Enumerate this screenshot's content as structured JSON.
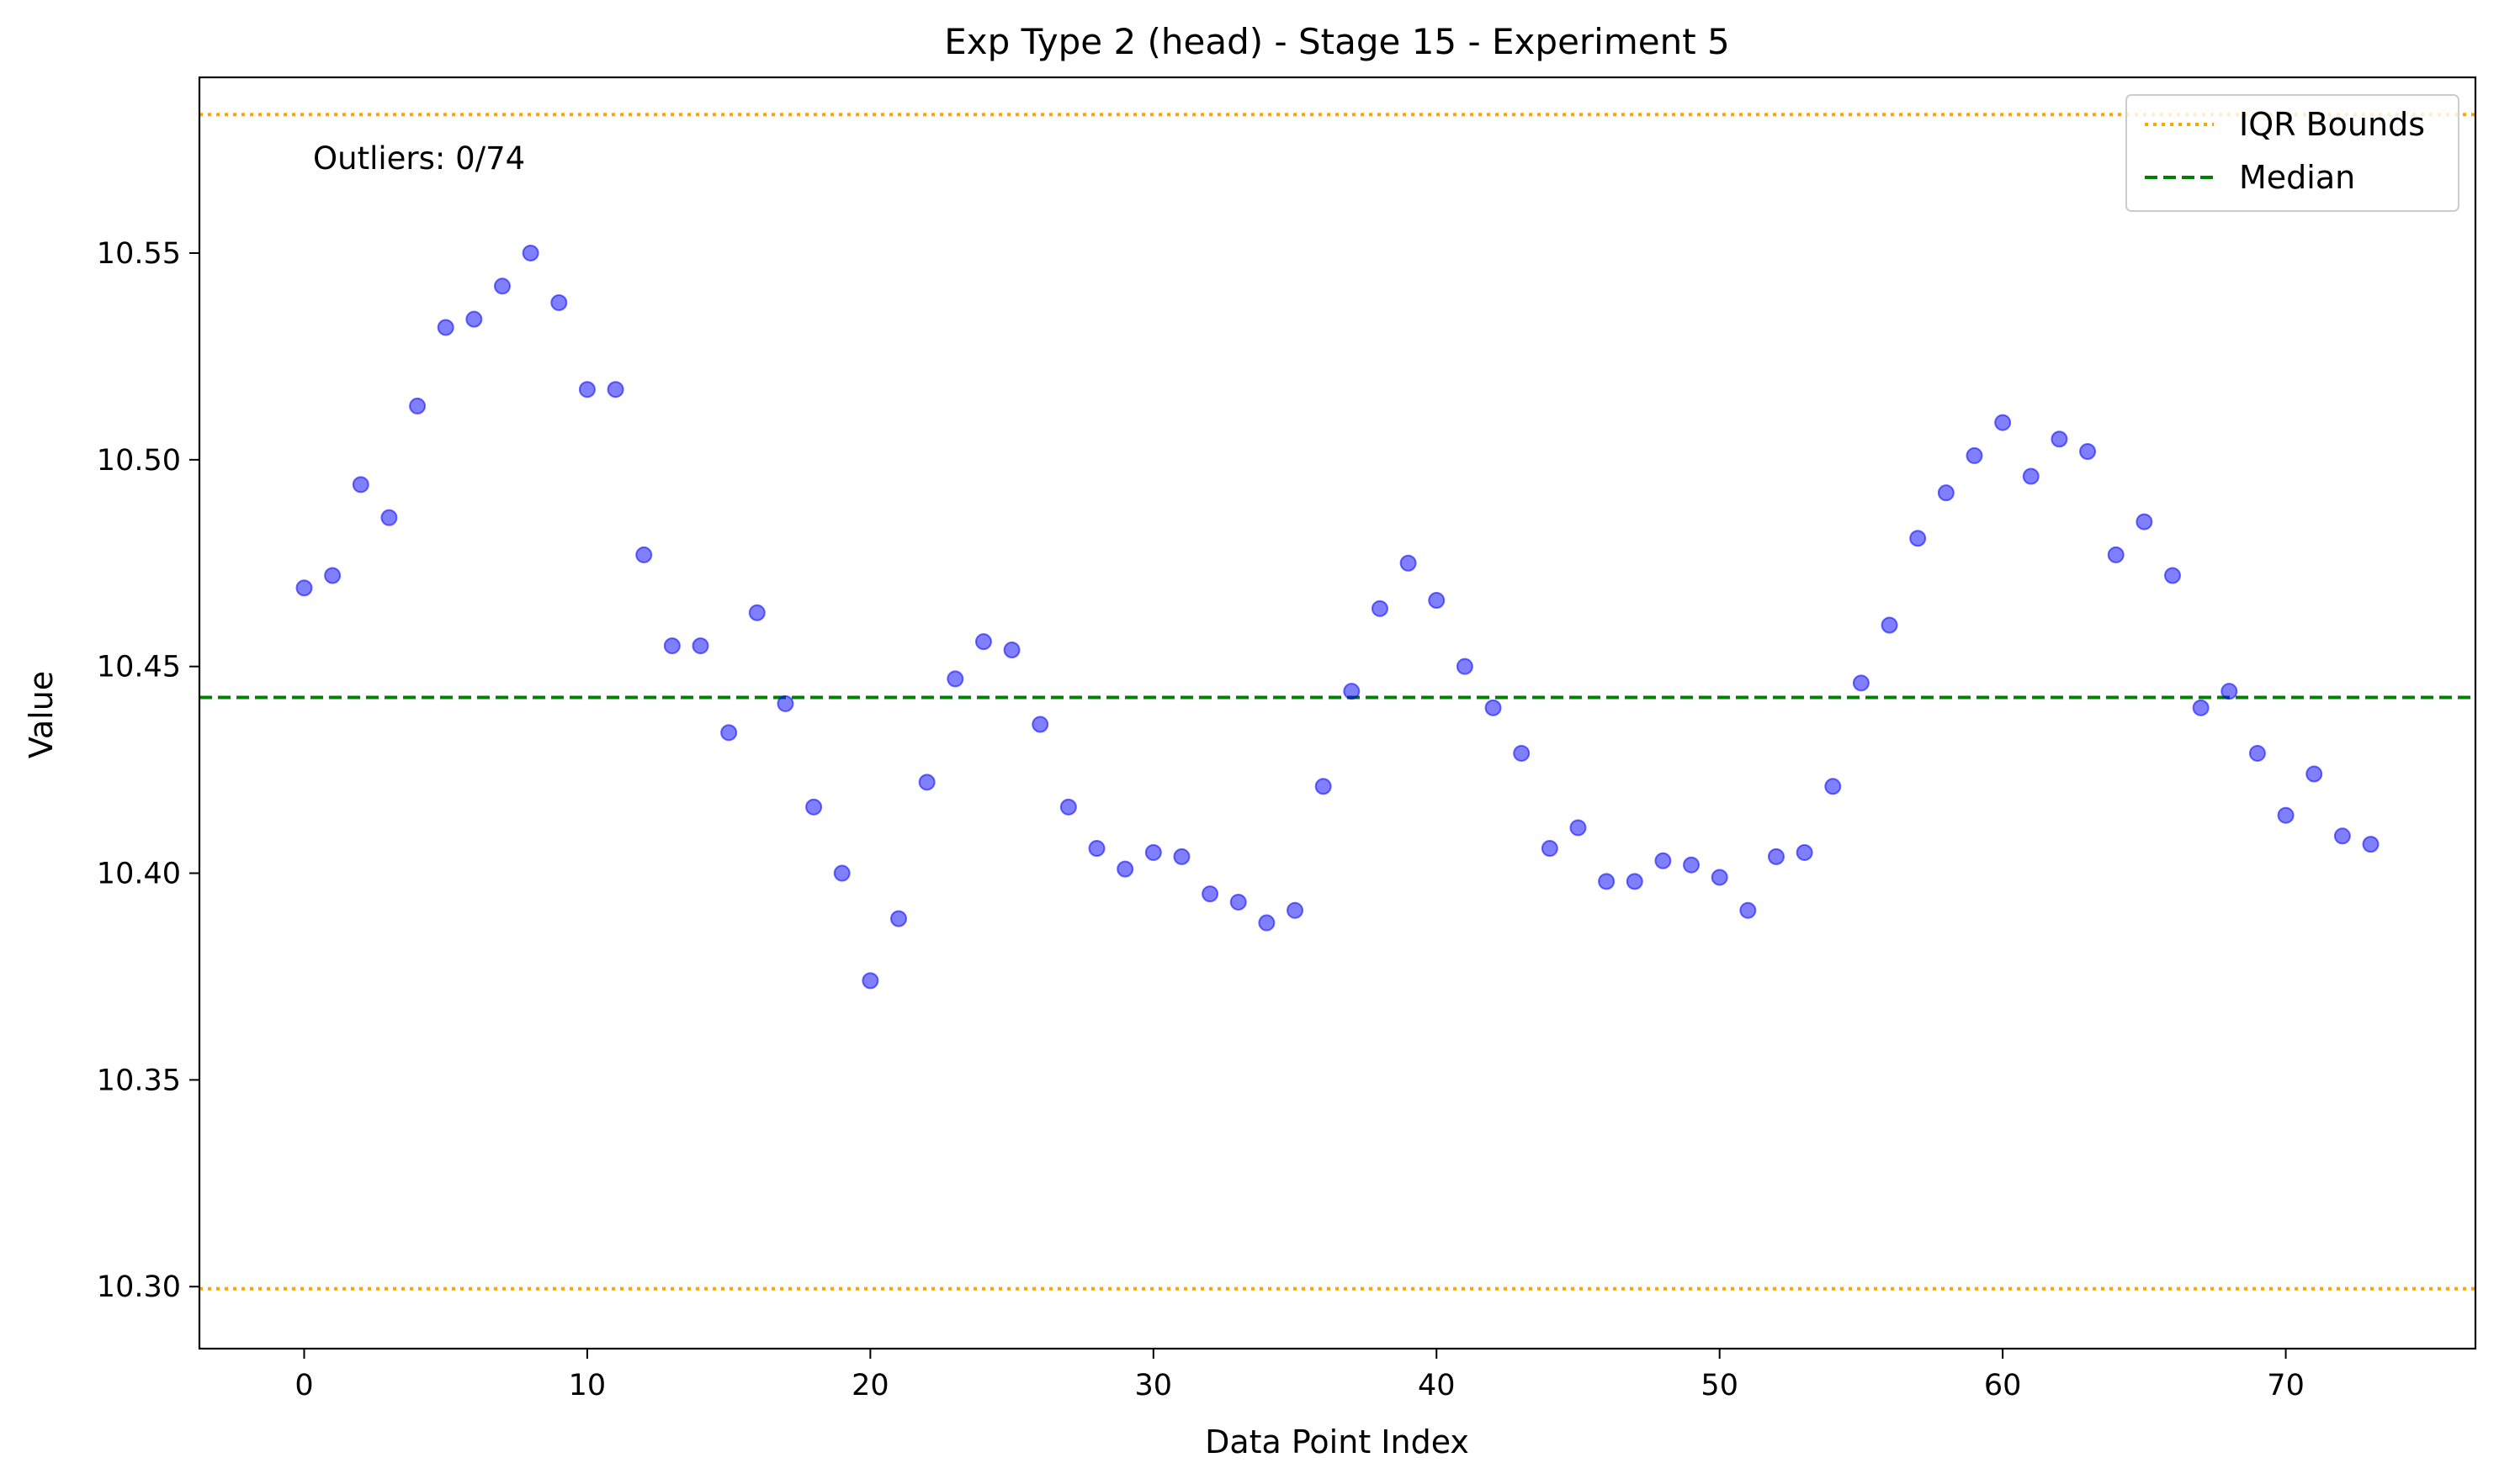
{
  "chart_data": {
    "type": "scatter",
    "title": "Exp Type 2 (head) - Stage 15 - Experiment 5",
    "xlabel": "Data Point Index",
    "ylabel": "Value",
    "xlim": [
      -3.7,
      76.7
    ],
    "ylim": [
      10.285,
      10.5925
    ],
    "xticks": [
      0,
      10,
      20,
      30,
      40,
      50,
      60,
      70
    ],
    "yticks": [
      10.3,
      10.35,
      10.4,
      10.45,
      10.5,
      10.55
    ],
    "xtick_labels": [
      "0",
      "10",
      "20",
      "30",
      "40",
      "50",
      "60",
      "70"
    ],
    "ytick_labels": [
      "10.30",
      "10.35",
      "10.40",
      "10.45",
      "10.50",
      "10.55"
    ],
    "grid": false,
    "x": [
      0,
      1,
      2,
      3,
      4,
      5,
      6,
      7,
      8,
      9,
      10,
      11,
      12,
      13,
      14,
      15,
      16,
      17,
      18,
      19,
      20,
      21,
      22,
      23,
      24,
      25,
      26,
      27,
      28,
      29,
      30,
      31,
      32,
      33,
      34,
      35,
      36,
      37,
      38,
      39,
      40,
      41,
      42,
      43,
      44,
      45,
      46,
      47,
      48,
      49,
      50,
      51,
      52,
      53,
      54,
      55,
      56,
      57,
      58,
      59,
      60,
      61,
      62,
      63,
      64,
      65,
      66,
      67,
      68,
      69,
      70,
      71,
      72,
      73
    ],
    "y": [
      10.469,
      10.472,
      10.494,
      10.486,
      10.513,
      10.532,
      10.534,
      10.542,
      10.55,
      10.538,
      10.517,
      10.517,
      10.477,
      10.455,
      10.455,
      10.434,
      10.463,
      10.441,
      10.416,
      10.4,
      10.374,
      10.389,
      10.422,
      10.447,
      10.456,
      10.454,
      10.436,
      10.416,
      10.406,
      10.401,
      10.405,
      10.404,
      10.395,
      10.393,
      10.388,
      10.391,
      10.421,
      10.444,
      10.464,
      10.475,
      10.466,
      10.45,
      10.44,
      10.429,
      10.406,
      10.411,
      10.398,
      10.398,
      10.403,
      10.402,
      10.399,
      10.391,
      10.404,
      10.405,
      10.421,
      10.446,
      10.46,
      10.481,
      10.492,
      10.501,
      10.509,
      10.496,
      10.505,
      10.502,
      10.477,
      10.485,
      10.472,
      10.44,
      10.444,
      10.429,
      10.414,
      10.424,
      10.409,
      10.407
    ],
    "point_color": "#0000ff",
    "reference_lines": [
      {
        "name": "IQR Bounds",
        "y": 10.5835,
        "style": "dotted",
        "color": "#ffa500"
      },
      {
        "name": "IQR Bounds",
        "y": 10.2995,
        "style": "dotted",
        "color": "#ffa500"
      },
      {
        "name": "Median",
        "y": 10.4425,
        "style": "dashed",
        "color": "#008000"
      }
    ],
    "legend": {
      "position": "top-right",
      "entries": [
        {
          "label": "IQR Bounds",
          "style": "dotted",
          "color": "#ffa500"
        },
        {
          "label": "Median",
          "style": "dashed",
          "color": "#008000"
        }
      ]
    },
    "annotation": "Outliers: 0/74"
  }
}
